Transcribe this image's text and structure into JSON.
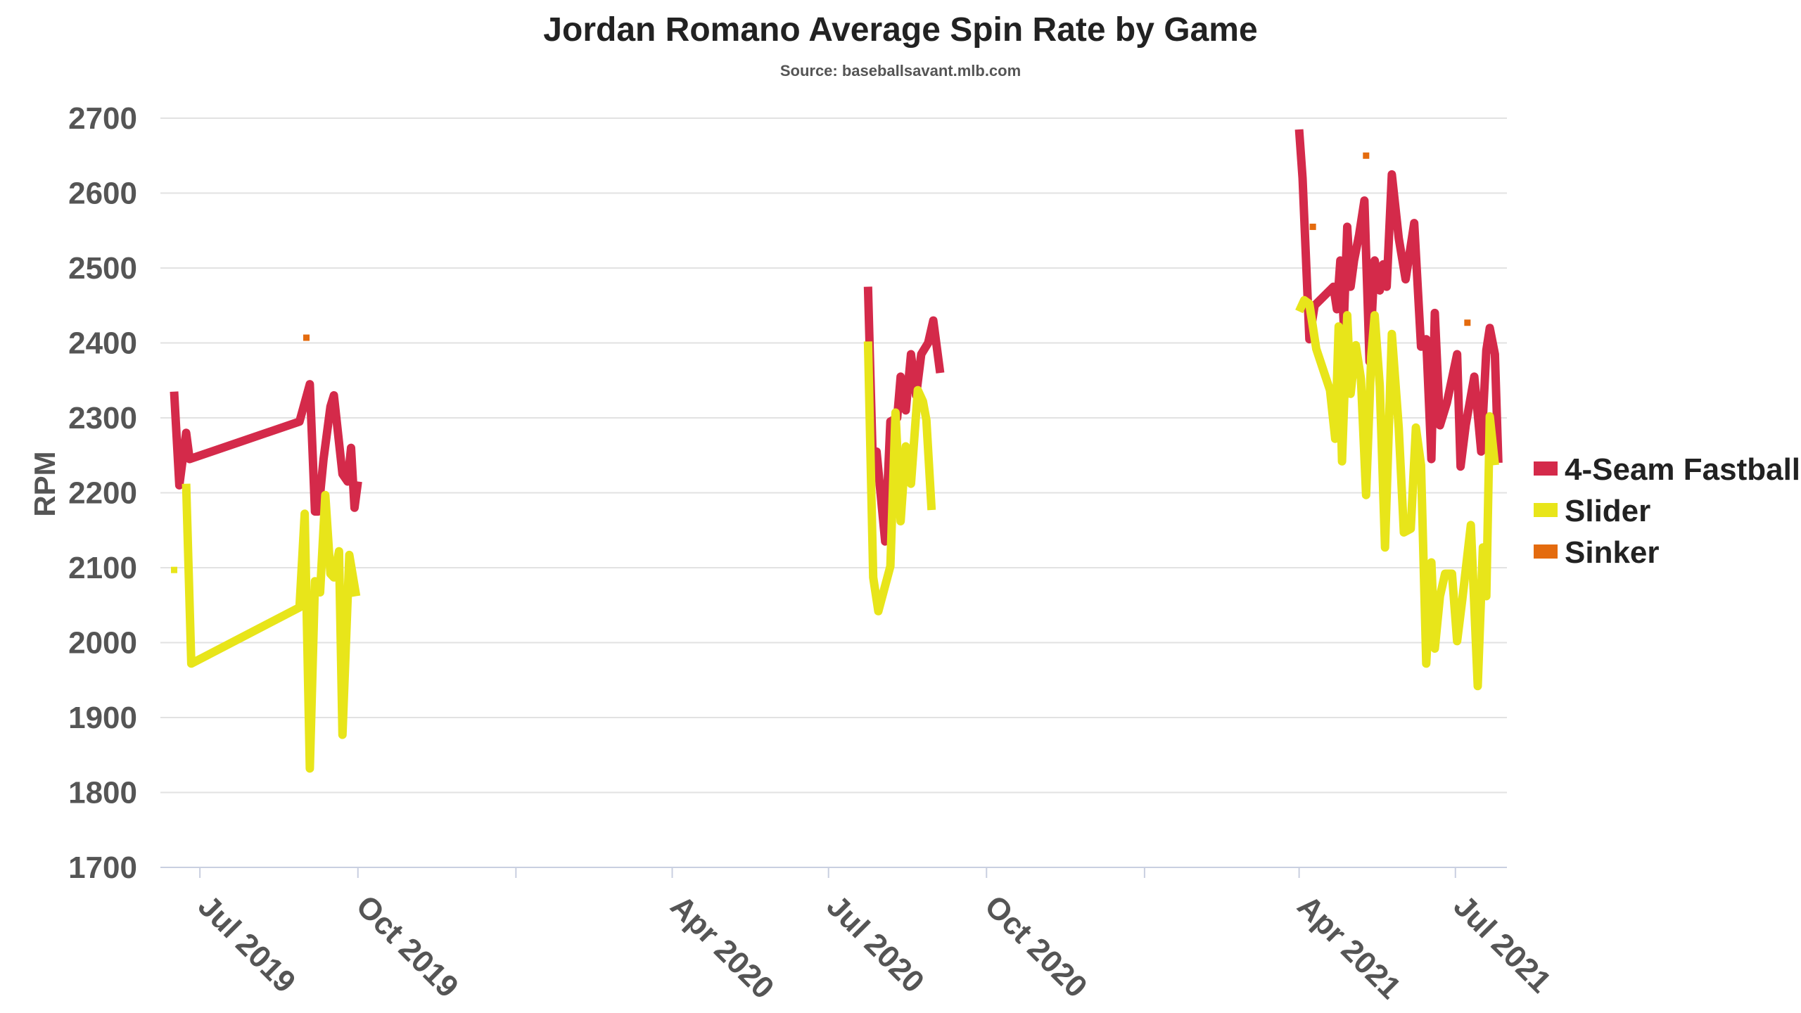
{
  "chart_data": {
    "type": "line",
    "title": "Jordan Romano Average Spin Rate by Game",
    "subtitle": "Source: baseballsavant.mlb.com",
    "ylabel": "RPM",
    "xlabel": "",
    "ylim": [
      1700,
      2700
    ],
    "yticks": [
      1700,
      1800,
      1900,
      2000,
      2100,
      2200,
      2300,
      2400,
      2500,
      2600,
      2700
    ],
    "xlim": [
      "2019-06-08",
      "2021-07-31"
    ],
    "xticks": [
      {
        "date": "2019-07-01",
        "label": "Jul 2019"
      },
      {
        "date": "2019-10-01",
        "label": "Oct 2019"
      },
      {
        "date": "2020-01-01",
        "label": ""
      },
      {
        "date": "2020-04-01",
        "label": "Apr 2020"
      },
      {
        "date": "2020-07-01",
        "label": "Jul 2020"
      },
      {
        "date": "2020-10-01",
        "label": "Oct 2020"
      },
      {
        "date": "2021-01-01",
        "label": ""
      },
      {
        "date": "2021-04-01",
        "label": "Apr 2021"
      },
      {
        "date": "2021-07-01",
        "label": "Jul 2021"
      }
    ],
    "grid": true,
    "legend": "right",
    "series": [
      {
        "name": "4-Seam Fastball",
        "color": "#d42a4a",
        "segments": [
          [
            [
              "2019-06-16",
              2335
            ],
            [
              "2019-06-19",
              2210
            ],
            [
              "2019-06-23",
              2280
            ],
            [
              "2019-06-25",
              2245
            ],
            [
              "2019-08-28",
              2295
            ],
            [
              "2019-09-03",
              2345
            ],
            [
              "2019-09-06",
              2175
            ],
            [
              "2019-09-08",
              2175
            ],
            [
              "2019-09-11",
              2245
            ],
            [
              "2019-09-15",
              2315
            ],
            [
              "2019-09-17",
              2330
            ],
            [
              "2019-09-22",
              2225
            ],
            [
              "2019-09-25",
              2215
            ],
            [
              "2019-09-27",
              2260
            ],
            [
              "2019-09-29",
              2180
            ],
            [
              "2019-10-01",
              2215
            ]
          ],
          [
            [
              "2020-07-24",
              2475
            ],
            [
              "2020-07-27",
              2220
            ],
            [
              "2020-07-29",
              2255
            ],
            [
              "2020-08-03",
              2135
            ],
            [
              "2020-08-06",
              2295
            ],
            [
              "2020-08-10",
              2300
            ],
            [
              "2020-08-12",
              2355
            ],
            [
              "2020-08-15",
              2310
            ],
            [
              "2020-08-18",
              2385
            ],
            [
              "2020-08-21",
              2330
            ],
            [
              "2020-08-24",
              2385
            ],
            [
              "2020-08-28",
              2400
            ],
            [
              "2020-08-31",
              2430
            ],
            [
              "2020-09-04",
              2360
            ]
          ],
          [
            [
              "2021-04-01",
              2685
            ],
            [
              "2021-04-03",
              2620
            ],
            [
              "2021-04-07",
              2405
            ],
            [
              "2021-04-10",
              2450
            ],
            [
              "2021-04-21",
              2475
            ],
            [
              "2021-04-23",
              2445
            ],
            [
              "2021-04-25",
              2510
            ],
            [
              "2021-04-27",
              2425
            ],
            [
              "2021-04-29",
              2555
            ],
            [
              "2021-05-01",
              2475
            ],
            [
              "2021-05-03",
              2510
            ],
            [
              "2021-05-06",
              2545
            ],
            [
              "2021-05-09",
              2590
            ],
            [
              "2021-05-12",
              2375
            ],
            [
              "2021-05-15",
              2510
            ],
            [
              "2021-05-18",
              2470
            ],
            [
              "2021-05-20",
              2505
            ],
            [
              "2021-05-22",
              2475
            ],
            [
              "2021-05-25",
              2625
            ],
            [
              "2021-05-29",
              2540
            ],
            [
              "2021-06-02",
              2485
            ],
            [
              "2021-06-07",
              2560
            ],
            [
              "2021-06-11",
              2395
            ],
            [
              "2021-06-14",
              2405
            ],
            [
              "2021-06-17",
              2245
            ],
            [
              "2021-06-19",
              2440
            ],
            [
              "2021-06-22",
              2290
            ],
            [
              "2021-06-26",
              2320
            ],
            [
              "2021-07-02",
              2385
            ],
            [
              "2021-07-04",
              2235
            ],
            [
              "2021-07-07",
              2290
            ],
            [
              "2021-07-12",
              2355
            ],
            [
              "2021-07-16",
              2255
            ],
            [
              "2021-07-19",
              2390
            ],
            [
              "2021-07-21",
              2420
            ],
            [
              "2021-07-24",
              2385
            ],
            [
              "2021-07-26",
              2240
            ]
          ]
        ]
      },
      {
        "name": "Slider",
        "color": "#e8e51a",
        "segments": [
          [
            [
              "2019-06-16",
              2097
            ]
          ],
          [
            [
              "2019-06-23",
              2212
            ],
            [
              "2019-06-26",
              1972
            ],
            [
              "2019-08-28",
              2047
            ],
            [
              "2019-08-31",
              2172
            ],
            [
              "2019-09-03",
              1832
            ],
            [
              "2019-09-06",
              2082
            ],
            [
              "2019-09-09",
              2067
            ],
            [
              "2019-09-12",
              2197
            ],
            [
              "2019-09-15",
              2092
            ],
            [
              "2019-09-17",
              2087
            ],
            [
              "2019-09-20",
              2122
            ],
            [
              "2019-09-22",
              1877
            ],
            [
              "2019-09-26",
              2117
            ],
            [
              "2019-09-30",
              2062
            ]
          ],
          [
            [
              "2020-07-24",
              2402
            ],
            [
              "2020-07-27",
              2087
            ],
            [
              "2020-07-30",
              2042
            ],
            [
              "2020-08-06",
              2102
            ],
            [
              "2020-08-09",
              2307
            ],
            [
              "2020-08-12",
              2162
            ],
            [
              "2020-08-15",
              2262
            ],
            [
              "2020-08-18",
              2212
            ],
            [
              "2020-08-22",
              2337
            ],
            [
              "2020-08-25",
              2322
            ],
            [
              "2020-08-27",
              2297
            ],
            [
              "2020-08-30",
              2177
            ]
          ],
          [
            [
              "2021-04-01",
              2442
            ],
            [
              "2021-04-04",
              2457
            ],
            [
              "2021-04-07",
              2452
            ],
            [
              "2021-04-11",
              2392
            ],
            [
              "2021-04-19",
              2337
            ],
            [
              "2021-04-22",
              2272
            ],
            [
              "2021-04-24",
              2422
            ],
            [
              "2021-04-26",
              2242
            ],
            [
              "2021-04-29",
              2437
            ],
            [
              "2021-05-01",
              2332
            ],
            [
              "2021-05-04",
              2397
            ],
            [
              "2021-05-07",
              2352
            ],
            [
              "2021-05-10",
              2197
            ],
            [
              "2021-05-13",
              2382
            ],
            [
              "2021-05-15",
              2437
            ],
            [
              "2021-05-18",
              2342
            ],
            [
              "2021-05-21",
              2127
            ],
            [
              "2021-05-25",
              2412
            ],
            [
              "2021-05-29",
              2287
            ],
            [
              "2021-06-01",
              2147
            ],
            [
              "2021-06-05",
              2152
            ],
            [
              "2021-06-08",
              2287
            ],
            [
              "2021-06-11",
              2237
            ],
            [
              "2021-06-14",
              1972
            ],
            [
              "2021-06-17",
              2107
            ],
            [
              "2021-06-19",
              1992
            ],
            [
              "2021-06-22",
              2062
            ],
            [
              "2021-06-25",
              2092
            ],
            [
              "2021-06-29",
              2092
            ],
            [
              "2021-07-02",
              2002
            ],
            [
              "2021-07-05",
              2057
            ],
            [
              "2021-07-10",
              2157
            ],
            [
              "2021-07-14",
              1942
            ],
            [
              "2021-07-17",
              2127
            ],
            [
              "2021-07-19",
              2062
            ],
            [
              "2021-07-21",
              2302
            ],
            [
              "2021-07-24",
              2237
            ]
          ]
        ]
      },
      {
        "name": "Sinker",
        "color": "#e46b0e",
        "segments": [
          [
            [
              "2019-09-01",
              2407
            ]
          ],
          [
            [
              "2021-04-09",
              2555
            ]
          ],
          [
            [
              "2021-05-10",
              2650
            ]
          ],
          [
            [
              "2021-07-08",
              2427
            ]
          ]
        ]
      }
    ]
  }
}
